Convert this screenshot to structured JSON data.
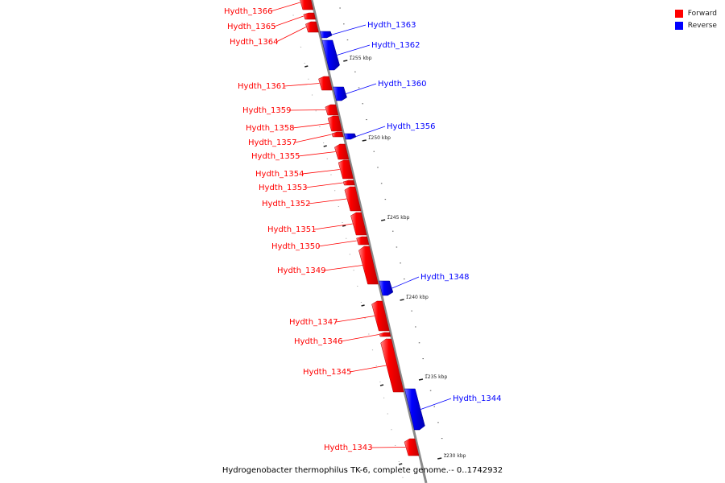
{
  "legend": {
    "forward": {
      "label": "Forward",
      "color": "#ff0000"
    },
    "reverse": {
      "label": "Reverse",
      "color": "#0000ff"
    }
  },
  "caption": "Hydrogenobacter thermophilus TK-6, complete genome. - 0..1742932",
  "scale_labels": [
    "1255 kbp",
    "1250 kbp",
    "1245 kbp",
    "1240 kbp",
    "1235 kbp",
    "1230 kbp"
  ],
  "genes": [
    {
      "id": "Hydth_1366",
      "strand": "forward"
    },
    {
      "id": "Hydth_1365",
      "strand": "forward"
    },
    {
      "id": "Hydth_1364",
      "strand": "forward"
    },
    {
      "id": "Hydth_1363",
      "strand": "reverse"
    },
    {
      "id": "Hydth_1362",
      "strand": "reverse"
    },
    {
      "id": "Hydth_1361",
      "strand": "forward"
    },
    {
      "id": "Hydth_1360",
      "strand": "reverse"
    },
    {
      "id": "Hydth_1359",
      "strand": "forward"
    },
    {
      "id": "Hydth_1358",
      "strand": "forward"
    },
    {
      "id": "Hydth_1357",
      "strand": "forward"
    },
    {
      "id": "Hydth_1356",
      "strand": "reverse"
    },
    {
      "id": "Hydth_1355",
      "strand": "forward"
    },
    {
      "id": "Hydth_1354",
      "strand": "forward"
    },
    {
      "id": "Hydth_1353",
      "strand": "forward"
    },
    {
      "id": "Hydth_1352",
      "strand": "forward"
    },
    {
      "id": "Hydth_1351",
      "strand": "forward"
    },
    {
      "id": "Hydth_1350",
      "strand": "forward"
    },
    {
      "id": "Hydth_1349",
      "strand": "forward"
    },
    {
      "id": "Hydth_1348",
      "strand": "reverse"
    },
    {
      "id": "Hydth_1347",
      "strand": "forward"
    },
    {
      "id": "Hydth_1346",
      "strand": "forward"
    },
    {
      "id": "Hydth_1345",
      "strand": "forward"
    },
    {
      "id": "Hydth_1344",
      "strand": "reverse"
    },
    {
      "id": "Hydth_1343",
      "strand": "forward"
    }
  ]
}
